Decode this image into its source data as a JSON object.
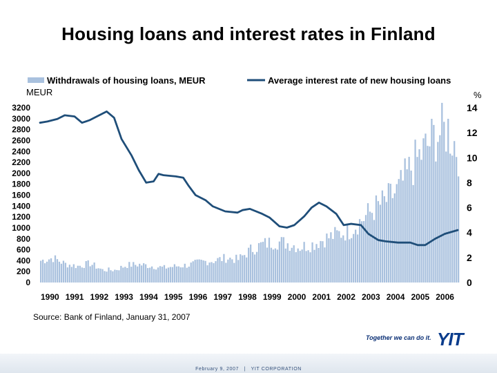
{
  "title": "Housing loans and interest rates in Finland",
  "source_text": "Source: Bank of Finland, January 31, 2007",
  "footer": {
    "date": "February 9, 2007",
    "separator": "|",
    "company": "YIT CORPORATION"
  },
  "branding": {
    "tagline": "Together we can do it.",
    "logo_text": "YIT"
  },
  "colors": {
    "bars": "#a9c1de",
    "line": "#1f4e79",
    "footer_text": "#34507a",
    "logo": "#0a3c8c"
  },
  "chart_data": {
    "type": "bar",
    "title": "Housing loans and interest rates in Finland",
    "ylabel": "MEUR",
    "ylabel_right": "%",
    "ylim": [
      0,
      3200
    ],
    "ylim_right": [
      0,
      14
    ],
    "y_ticks": [
      "0",
      "200",
      "400",
      "600",
      "800",
      "1000",
      "1200",
      "1400",
      "1600",
      "1800",
      "2000",
      "2200",
      "2400",
      "2600",
      "2800",
      "3000",
      "3200"
    ],
    "y_ticks_right": [
      "0",
      "2",
      "4",
      "6",
      "8",
      "10",
      "12",
      "14"
    ],
    "x_ticks": [
      "1990",
      "1991",
      "1992",
      "1993",
      "1994",
      "1995",
      "1996",
      "1997",
      "1998",
      "1999",
      "2000",
      "2001",
      "2002",
      "2003",
      "2004",
      "2005",
      "2006"
    ],
    "x_range": [
      1990,
      2007
    ],
    "legend_position": "top",
    "grid": false,
    "series": [
      {
        "name": "Withdrawals of housing loans, MEUR",
        "type": "bar",
        "axis": "left",
        "x": [
          1990,
          1991,
          1992,
          1993,
          1994,
          1995,
          1996,
          1997,
          1998,
          1999,
          2000,
          2001,
          2002,
          2003,
          2004,
          2005,
          2006
        ],
        "points": [
          [
            1990.0,
            400
          ],
          [
            1990.5,
            450
          ],
          [
            1991.0,
            340
          ],
          [
            1991.5,
            300
          ],
          [
            1992.0,
            350
          ],
          [
            1992.5,
            230
          ],
          [
            1993.0,
            230
          ],
          [
            1993.5,
            320
          ],
          [
            1994.0,
            330
          ],
          [
            1994.5,
            300
          ],
          [
            1995.0,
            270
          ],
          [
            1995.5,
            300
          ],
          [
            1996.0,
            320
          ],
          [
            1996.5,
            380
          ],
          [
            1997.0,
            400
          ],
          [
            1997.5,
            450
          ],
          [
            1998.0,
            420
          ],
          [
            1998.5,
            600
          ],
          [
            1999.0,
            700
          ],
          [
            1999.5,
            750
          ],
          [
            2000.0,
            720
          ],
          [
            2000.5,
            650
          ],
          [
            2001.0,
            700
          ],
          [
            2001.5,
            800
          ],
          [
            2002.0,
            880
          ],
          [
            2002.5,
            950
          ],
          [
            2003.0,
            1150
          ],
          [
            2003.5,
            1350
          ],
          [
            2004.0,
            1500
          ],
          [
            2004.5,
            1700
          ],
          [
            2005.0,
            2100
          ],
          [
            2005.5,
            2400
          ],
          [
            2006.0,
            2700
          ],
          [
            2006.5,
            2800
          ],
          [
            2006.92,
            2400
          ]
        ]
      },
      {
        "name": "Average interest rate of new housing loans",
        "type": "line",
        "axis": "right",
        "x": [
          1990,
          1991,
          1992,
          1993,
          1994,
          1995,
          1996,
          1997,
          1998,
          1999,
          2000,
          2001,
          2002,
          2003,
          2004,
          2005,
          2006
        ],
        "points": [
          [
            1990.0,
            12.8
          ],
          [
            1990.3,
            12.9
          ],
          [
            1990.7,
            13.1
          ],
          [
            1991.0,
            13.4
          ],
          [
            1991.4,
            13.3
          ],
          [
            1991.7,
            12.8
          ],
          [
            1992.0,
            13.0
          ],
          [
            1992.5,
            13.5
          ],
          [
            1992.7,
            13.7
          ],
          [
            1993.0,
            13.2
          ],
          [
            1993.3,
            11.5
          ],
          [
            1993.7,
            10.2
          ],
          [
            1994.0,
            9.0
          ],
          [
            1994.3,
            8.0
          ],
          [
            1994.6,
            8.1
          ],
          [
            1994.8,
            8.7
          ],
          [
            1995.0,
            8.6
          ],
          [
            1995.5,
            8.5
          ],
          [
            1995.8,
            8.4
          ],
          [
            1996.0,
            7.8
          ],
          [
            1996.3,
            7.0
          ],
          [
            1996.7,
            6.6
          ],
          [
            1997.0,
            6.1
          ],
          [
            1997.5,
            5.7
          ],
          [
            1998.0,
            5.6
          ],
          [
            1998.2,
            5.8
          ],
          [
            1998.5,
            5.9
          ],
          [
            1999.0,
            5.5
          ],
          [
            1999.3,
            5.2
          ],
          [
            1999.7,
            4.5
          ],
          [
            2000.0,
            4.4
          ],
          [
            2000.3,
            4.6
          ],
          [
            2000.7,
            5.3
          ],
          [
            2001.0,
            6.0
          ],
          [
            2001.3,
            6.4
          ],
          [
            2001.6,
            6.1
          ],
          [
            2002.0,
            5.5
          ],
          [
            2002.3,
            4.6
          ],
          [
            2002.6,
            4.7
          ],
          [
            2003.0,
            4.6
          ],
          [
            2003.3,
            3.9
          ],
          [
            2003.7,
            3.4
          ],
          [
            2004.0,
            3.3
          ],
          [
            2004.5,
            3.2
          ],
          [
            2005.0,
            3.2
          ],
          [
            2005.3,
            3.0
          ],
          [
            2005.6,
            3.0
          ],
          [
            2006.0,
            3.5
          ],
          [
            2006.4,
            3.9
          ],
          [
            2006.92,
            4.2
          ]
        ]
      }
    ]
  }
}
